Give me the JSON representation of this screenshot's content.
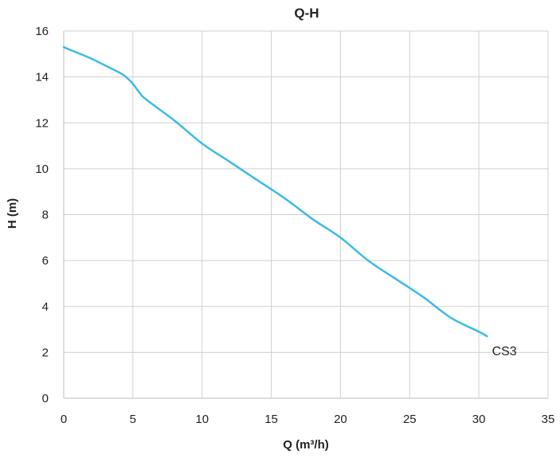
{
  "chart_data": {
    "type": "line",
    "title": "Q-H",
    "xlabel": "Q (m³/h)",
    "ylabel": "H (m)",
    "xlim": [
      0,
      35
    ],
    "ylim": [
      0,
      16
    ],
    "xticks": [
      0,
      5,
      10,
      15,
      20,
      25,
      30,
      35
    ],
    "yticks": [
      0,
      2,
      4,
      6,
      8,
      10,
      12,
      14,
      16
    ],
    "grid": true,
    "series": [
      {
        "name": "CS3",
        "color": "#3bbbe8",
        "x": [
          0,
          1,
          2,
          3,
          4,
          4.5,
          5,
          5.5,
          6,
          8,
          10,
          12,
          14,
          16,
          18,
          20,
          22,
          24,
          26,
          28,
          30,
          30.6
        ],
        "y": [
          15.3,
          15.05,
          14.8,
          14.5,
          14.2,
          14.0,
          13.7,
          13.3,
          13.0,
          12.1,
          11.1,
          10.3,
          9.5,
          8.7,
          7.8,
          7.0,
          6.0,
          5.2,
          4.4,
          3.5,
          2.9,
          2.7
        ]
      }
    ]
  }
}
